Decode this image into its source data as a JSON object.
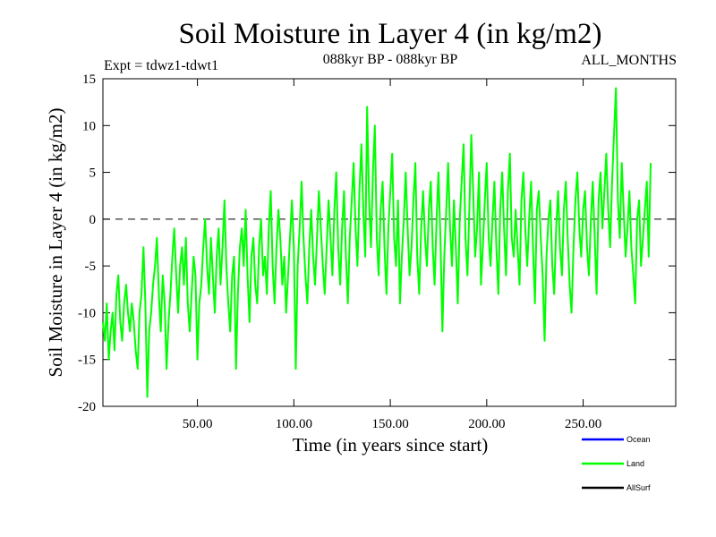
{
  "chart_data": {
    "type": "line",
    "title": "Soil Moisture in Layer 4 (in kg/m2)",
    "subtitle_left": "Expt = tdwz1-tdwt1",
    "subtitle_center": "088kyr BP - 088kyr BP",
    "subtitle_right": "ALL_MONTHS",
    "xlabel": "Time (in years since start)",
    "ylabel": "Soil Moisture in Layer 4 (in kg/m2)",
    "xlim": [
      1,
      298
    ],
    "ylim": [
      -20,
      15
    ],
    "x_ticks": [
      50,
      100,
      150,
      200,
      250
    ],
    "x_tick_labels": [
      "50.00",
      "100.00",
      "150.00",
      "200.00",
      "250.00"
    ],
    "y_ticks": [
      -20,
      -15,
      -10,
      -5,
      0,
      5,
      10,
      15
    ],
    "y_tick_labels": [
      "-20",
      "-15",
      "-10",
      "-5",
      "0",
      "5",
      "10",
      "15"
    ],
    "reference_line": 0,
    "legend": [
      {
        "name": "Ocean",
        "color": "#0000ff"
      },
      {
        "name": "Land",
        "color": "#00ff00"
      },
      {
        "name": "AllSurf",
        "color": "#000000"
      }
    ],
    "series": [
      {
        "name": "Land",
        "color": "#00ff00",
        "x_start": 1,
        "x_step": 1,
        "values": [
          -11,
          -13,
          -9,
          -15,
          -12,
          -10,
          -14,
          -8,
          -6,
          -11,
          -13,
          -9,
          -7,
          -10,
          -12,
          -9,
          -11,
          -14,
          -16,
          -10,
          -8,
          -3,
          -9,
          -19,
          -12,
          -10,
          -7,
          -5,
          -2,
          -8,
          -12,
          -6,
          -9,
          -16,
          -11,
          -8,
          -4,
          -1,
          -6,
          -10,
          -5,
          -3,
          -7,
          -2,
          -9,
          -12,
          -8,
          -4,
          -6,
          -15,
          -9,
          -7,
          -3,
          0,
          -5,
          -8,
          -2,
          -6,
          -10,
          -4,
          -1,
          -7,
          -3,
          2,
          -5,
          -9,
          -12,
          -6,
          -4,
          -16,
          -8,
          -3,
          -1,
          -5,
          1,
          -6,
          -11,
          -4,
          -2,
          -7,
          -9,
          -3,
          0,
          -6,
          -4,
          -8,
          -1,
          3,
          -5,
          -9,
          -3,
          1,
          -2,
          -7,
          -4,
          -10,
          -6,
          -2,
          2,
          -3,
          -16,
          -5,
          -1,
          4,
          -2,
          -6,
          -9,
          -3,
          1,
          -4,
          -7,
          -2,
          3,
          -1,
          -5,
          -8,
          -3,
          2,
          -2,
          -6,
          1,
          5,
          -3,
          -7,
          -1,
          3,
          -4,
          -9,
          -2,
          2,
          6,
          -1,
          -5,
          3,
          8,
          1,
          -4,
          12,
          2,
          -3,
          5,
          10,
          -2,
          -6,
          1,
          4,
          -3,
          -8,
          -1,
          3,
          7,
          -2,
          -5,
          2,
          -9,
          -4,
          0,
          5,
          -1,
          -6,
          -3,
          2,
          6,
          -4,
          -8,
          -1,
          3,
          -2,
          -5,
          1,
          4,
          -3,
          -7,
          0,
          5,
          -2,
          -12,
          -4,
          1,
          6,
          -1,
          -5,
          2,
          -3,
          -9,
          0,
          4,
          8,
          -2,
          -6,
          1,
          9,
          3,
          -4,
          -1,
          5,
          -7,
          -3,
          2,
          6,
          -2,
          -5,
          0,
          4,
          -3,
          -8,
          1,
          5,
          -1,
          -6,
          3,
          7,
          -2,
          -4,
          1,
          -3,
          -7,
          2,
          5,
          -1,
          -5,
          0,
          4,
          -3,
          -9,
          1,
          3,
          -2,
          -6,
          -13,
          -4,
          0,
          2,
          -5,
          -8,
          -1,
          3,
          -3,
          -6,
          1,
          4,
          -2,
          -7,
          -10,
          -3,
          2,
          5,
          -1,
          -4,
          1,
          3,
          -3,
          -6,
          0,
          4,
          -2,
          -8,
          2,
          5,
          -1,
          3,
          7,
          1,
          -3,
          4,
          9,
          14,
          2,
          -2,
          6,
          1,
          -4,
          -1,
          3,
          -3,
          -6,
          -9,
          0,
          2,
          -5,
          -2,
          1,
          4,
          -4,
          6
        ]
      }
    ]
  }
}
